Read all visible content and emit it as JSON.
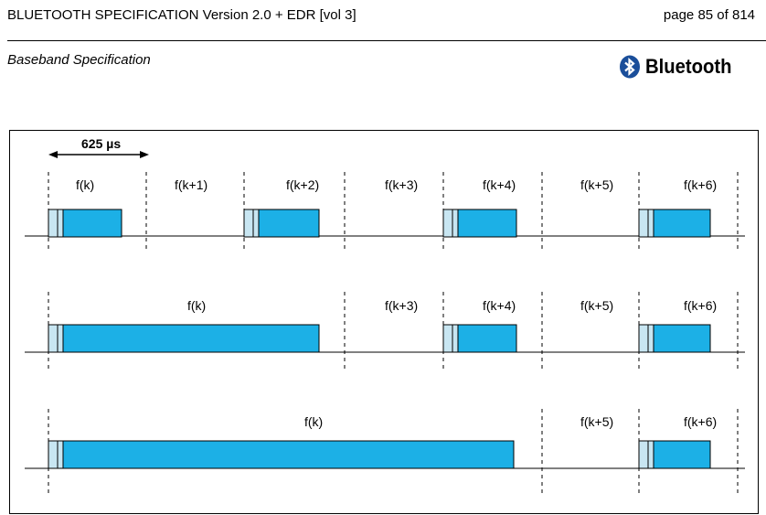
{
  "header": {
    "title": "BLUETOOTH SPECIFICATION Version 2.0 + EDR [vol 3]",
    "page": "page 85 of 814",
    "subtitle": "Baseband Specification",
    "logo_text": "Bluetooth",
    "logo_icon": "bluetooth-icon"
  },
  "figure": {
    "duration_label": "625 µs",
    "rows": [
      {
        "labels": [
          "f(k)",
          "f(k+1)",
          "f(k+2)",
          "f(k+3)",
          "f(k+4)",
          "f(k+5)",
          "f(k+6)"
        ]
      },
      {
        "labels": [
          "f(k)",
          "f(k+3)",
          "f(k+4)",
          "f(k+5)",
          "f(k+6)"
        ]
      },
      {
        "labels": [
          "f(k)",
          "f(k+5)",
          "f(k+6)"
        ]
      }
    ]
  },
  "colors": {
    "packet_fill": "#1CB0E6",
    "preamble_fill": "#C8E6F2",
    "outline": "#000000"
  }
}
